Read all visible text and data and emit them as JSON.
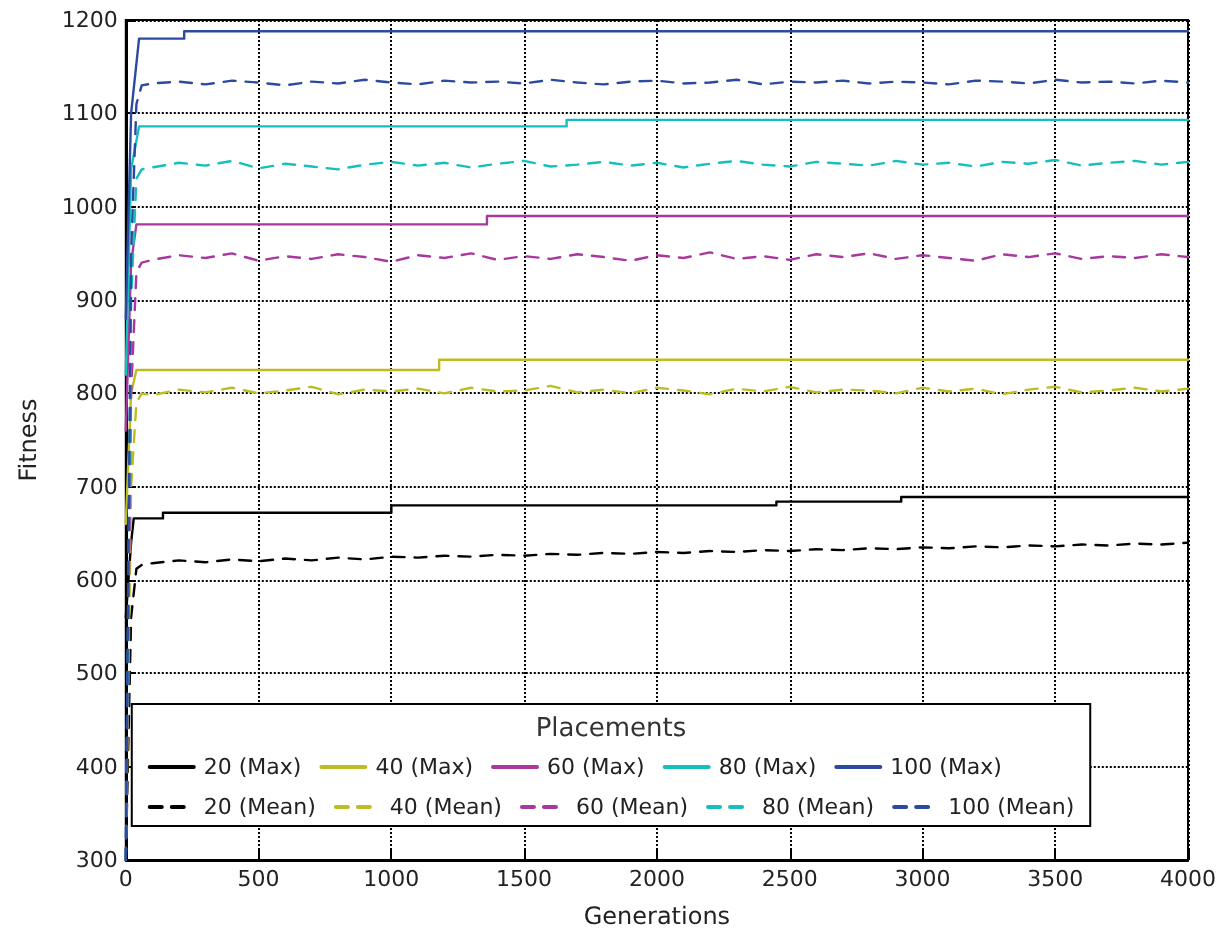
{
  "chart_data": {
    "type": "line",
    "xlabel": "Generations",
    "ylabel": "Fitness",
    "legend_title": "Placements",
    "xlim": [
      0,
      4000
    ],
    "xticks": [
      0,
      500,
      1000,
      1500,
      2000,
      2500,
      3000,
      3500,
      4000
    ],
    "ylim": [
      300,
      1200
    ],
    "yticks": [
      300,
      400,
      500,
      600,
      700,
      800,
      900,
      1000,
      1100,
      1200
    ],
    "grid": true,
    "legend": "bottom",
    "marker": "none",
    "x": [
      0,
      20,
      40,
      60,
      100,
      200,
      300,
      400,
      500,
      600,
      700,
      800,
      900,
      1000,
      1100,
      1200,
      1300,
      1400,
      1500,
      1600,
      1700,
      1800,
      1900,
      2000,
      2100,
      2200,
      2300,
      2400,
      2500,
      2600,
      2700,
      2800,
      2900,
      3000,
      3100,
      3200,
      3300,
      3400,
      3500,
      3600,
      3700,
      3800,
      3900,
      4000
    ],
    "series": [
      {
        "name": "20 (Max)",
        "color": "#000000",
        "line_style": "solid",
        "x": [
          0,
          20,
          30,
          140,
          140,
          1000,
          1000,
          2450,
          2450,
          2920,
          2920,
          4000
        ],
        "values": [
          560,
          640,
          666,
          666,
          672,
          672,
          680,
          680,
          684,
          684,
          689,
          689
        ]
      },
      {
        "name": "40 (Max)",
        "color": "#bcbd22",
        "line_style": "solid",
        "x": [
          0,
          20,
          40,
          1180,
          1180,
          4000
        ],
        "values": [
          660,
          800,
          825,
          825,
          836,
          836
        ]
      },
      {
        "name": "60 (Max)",
        "color": "#a8389f",
        "line_style": "solid",
        "x": [
          0,
          20,
          40,
          1360,
          1360,
          4000
        ],
        "values": [
          760,
          940,
          981,
          981,
          990,
          990
        ]
      },
      {
        "name": "80 (Max)",
        "color": "#17bebe",
        "line_style": "solid",
        "x": [
          0,
          20,
          50,
          1660,
          1660,
          4000
        ],
        "values": [
          820,
          1040,
          1086,
          1086,
          1093,
          1093
        ]
      },
      {
        "name": "100 (Max)",
        "color": "#2b4ba0",
        "line_style": "solid",
        "x": [
          0,
          20,
          50,
          220,
          220,
          4000
        ],
        "values": [
          880,
          1100,
          1180,
          1180,
          1188,
          1188
        ]
      },
      {
        "name": "20 (Mean)",
        "color": "#000000",
        "line_style": "dashed",
        "values": [
          300,
          560,
          612,
          616,
          618,
          621,
          619,
          622,
          620,
          623,
          621,
          624,
          622,
          625,
          624,
          626,
          625,
          627,
          626,
          628,
          627,
          629,
          628,
          630,
          629,
          631,
          630,
          632,
          631,
          633,
          632,
          634,
          633,
          635,
          634,
          636,
          635,
          637,
          636,
          638,
          637,
          639,
          638,
          640
        ]
      },
      {
        "name": "40 (Mean)",
        "color": "#bcbd22",
        "line_style": "dashed",
        "values": [
          300,
          700,
          790,
          800,
          798,
          804,
          801,
          806,
          800,
          803,
          807,
          799,
          804,
          802,
          805,
          800,
          806,
          802,
          803,
          808,
          801,
          804,
          800,
          806,
          803,
          799,
          805,
          802,
          807,
          801,
          804,
          803,
          800,
          806,
          802,
          805,
          799,
          804,
          807,
          801,
          803,
          806,
          802,
          805
        ]
      },
      {
        "name": "60 (Mean)",
        "color": "#a8389f",
        "line_style": "dashed",
        "values": [
          300,
          800,
          930,
          940,
          943,
          948,
          945,
          950,
          942,
          947,
          944,
          949,
          946,
          941,
          948,
          945,
          950,
          943,
          947,
          944,
          949,
          946,
          942,
          948,
          945,
          951,
          944,
          947,
          943,
          949,
          946,
          950,
          944,
          948,
          945,
          942,
          949,
          946,
          950,
          944,
          947,
          945,
          949,
          946
        ]
      },
      {
        "name": "80 (Mean)",
        "color": "#17bebe",
        "line_style": "dashed",
        "values": [
          300,
          900,
          1030,
          1040,
          1042,
          1047,
          1044,
          1049,
          1041,
          1046,
          1043,
          1040,
          1045,
          1048,
          1044,
          1047,
          1042,
          1046,
          1049,
          1043,
          1045,
          1048,
          1044,
          1047,
          1042,
          1046,
          1049,
          1045,
          1043,
          1048,
          1046,
          1044,
          1049,
          1045,
          1047,
          1043,
          1048,
          1046,
          1050,
          1044,
          1047,
          1049,
          1045,
          1048
        ]
      },
      {
        "name": "100 (Mean)",
        "color": "#2b4ba0",
        "line_style": "dashed",
        "values": [
          300,
          950,
          1110,
          1130,
          1132,
          1134,
          1131,
          1135,
          1133,
          1130,
          1134,
          1132,
          1136,
          1133,
          1131,
          1135,
          1133,
          1134,
          1132,
          1136,
          1133,
          1131,
          1134,
          1135,
          1132,
          1133,
          1136,
          1131,
          1134,
          1133,
          1135,
          1132,
          1134,
          1133,
          1131,
          1135,
          1134,
          1132,
          1136,
          1133,
          1134,
          1132,
          1135,
          1133
        ]
      }
    ]
  }
}
